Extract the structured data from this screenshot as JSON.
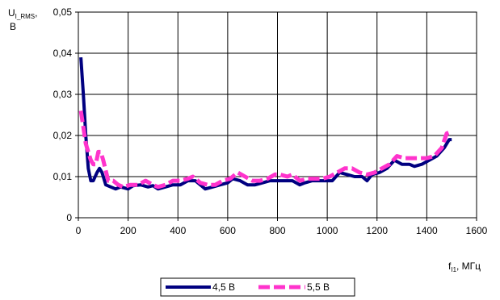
{
  "chart_data": {
    "type": "line",
    "title": "",
    "ylabel": {
      "main": "U",
      "sub": "I_RMS",
      "suffix": ",",
      "line2": "В"
    },
    "xlabel": {
      "main": "f",
      "sub": "I1",
      "suffix": ", МГц"
    },
    "xlim": [
      0,
      1600
    ],
    "ylim": [
      0,
      0.05
    ],
    "x_ticks": [
      0,
      200,
      400,
      600,
      800,
      1000,
      1200,
      1400,
      1600
    ],
    "x_tick_labels": [
      "0",
      "200",
      "400",
      "600",
      "800",
      "1000",
      "1200",
      "1400",
      "1600"
    ],
    "y_ticks": [
      0,
      0.01,
      0.02,
      0.03,
      0.04,
      0.05
    ],
    "y_tick_labels": [
      "0",
      "0,01",
      "0,02",
      "0,03",
      "0,04",
      "0,05"
    ],
    "grid": true,
    "legend_position": "bottom-center",
    "series": [
      {
        "name": "4,5 В",
        "color": "#000080",
        "style": "solid",
        "points": [
          [
            10,
            0.039
          ],
          [
            20,
            0.03
          ],
          [
            30,
            0.02
          ],
          [
            40,
            0.012
          ],
          [
            50,
            0.009
          ],
          [
            60,
            0.009
          ],
          [
            75,
            0.011
          ],
          [
            85,
            0.012
          ],
          [
            95,
            0.011
          ],
          [
            110,
            0.008
          ],
          [
            130,
            0.0075
          ],
          [
            150,
            0.007
          ],
          [
            170,
            0.0075
          ],
          [
            200,
            0.007
          ],
          [
            220,
            0.0078
          ],
          [
            250,
            0.008
          ],
          [
            280,
            0.0075
          ],
          [
            300,
            0.0078
          ],
          [
            320,
            0.007
          ],
          [
            350,
            0.0075
          ],
          [
            380,
            0.008
          ],
          [
            410,
            0.008
          ],
          [
            440,
            0.009
          ],
          [
            470,
            0.009
          ],
          [
            490,
            0.008
          ],
          [
            510,
            0.007
          ],
          [
            540,
            0.0075
          ],
          [
            570,
            0.008
          ],
          [
            600,
            0.0085
          ],
          [
            620,
            0.0095
          ],
          [
            650,
            0.009
          ],
          [
            680,
            0.008
          ],
          [
            710,
            0.008
          ],
          [
            740,
            0.0085
          ],
          [
            770,
            0.009
          ],
          [
            800,
            0.009
          ],
          [
            830,
            0.009
          ],
          [
            860,
            0.009
          ],
          [
            890,
            0.008
          ],
          [
            910,
            0.0085
          ],
          [
            940,
            0.009
          ],
          [
            970,
            0.009
          ],
          [
            1000,
            0.009
          ],
          [
            1020,
            0.009
          ],
          [
            1050,
            0.011
          ],
          [
            1080,
            0.0105
          ],
          [
            1110,
            0.01
          ],
          [
            1140,
            0.01
          ],
          [
            1160,
            0.009
          ],
          [
            1180,
            0.0105
          ],
          [
            1210,
            0.011
          ],
          [
            1240,
            0.012
          ],
          [
            1270,
            0.014
          ],
          [
            1300,
            0.013
          ],
          [
            1330,
            0.013
          ],
          [
            1350,
            0.0125
          ],
          [
            1380,
            0.013
          ],
          [
            1410,
            0.014
          ],
          [
            1440,
            0.015
          ],
          [
            1470,
            0.017
          ],
          [
            1490,
            0.019
          ],
          [
            1500,
            0.019
          ]
        ]
      },
      {
        "name": "5,5 В",
        "color": "#FF33CC",
        "style": "dashed",
        "points": [
          [
            10,
            0.026
          ],
          [
            20,
            0.022
          ],
          [
            30,
            0.018
          ],
          [
            40,
            0.016
          ],
          [
            50,
            0.014
          ],
          [
            60,
            0.013
          ],
          [
            70,
            0.013
          ],
          [
            80,
            0.016
          ],
          [
            90,
            0.016
          ],
          [
            100,
            0.014
          ],
          [
            120,
            0.009
          ],
          [
            140,
            0.009
          ],
          [
            160,
            0.008
          ],
          [
            180,
            0.0075
          ],
          [
            210,
            0.008
          ],
          [
            240,
            0.008
          ],
          [
            270,
            0.009
          ],
          [
            300,
            0.008
          ],
          [
            320,
            0.0075
          ],
          [
            350,
            0.008
          ],
          [
            380,
            0.009
          ],
          [
            410,
            0.009
          ],
          [
            440,
            0.0095
          ],
          [
            460,
            0.01
          ],
          [
            490,
            0.0085
          ],
          [
            520,
            0.008
          ],
          [
            550,
            0.008
          ],
          [
            580,
            0.009
          ],
          [
            610,
            0.0095
          ],
          [
            640,
            0.011
          ],
          [
            670,
            0.01
          ],
          [
            700,
            0.009
          ],
          [
            730,
            0.009
          ],
          [
            760,
            0.0095
          ],
          [
            790,
            0.0105
          ],
          [
            810,
            0.0105
          ],
          [
            840,
            0.01
          ],
          [
            860,
            0.0105
          ],
          [
            890,
            0.009
          ],
          [
            920,
            0.0095
          ],
          [
            950,
            0.0095
          ],
          [
            980,
            0.0095
          ],
          [
            1010,
            0.01
          ],
          [
            1040,
            0.011
          ],
          [
            1070,
            0.012
          ],
          [
            1100,
            0.012
          ],
          [
            1130,
            0.011
          ],
          [
            1160,
            0.0105
          ],
          [
            1190,
            0.011
          ],
          [
            1220,
            0.012
          ],
          [
            1250,
            0.013
          ],
          [
            1280,
            0.015
          ],
          [
            1310,
            0.0145
          ],
          [
            1340,
            0.0145
          ],
          [
            1370,
            0.0145
          ],
          [
            1400,
            0.0145
          ],
          [
            1430,
            0.015
          ],
          [
            1460,
            0.017
          ],
          [
            1480,
            0.0205
          ],
          [
            1500,
            0.021
          ]
        ]
      }
    ]
  }
}
